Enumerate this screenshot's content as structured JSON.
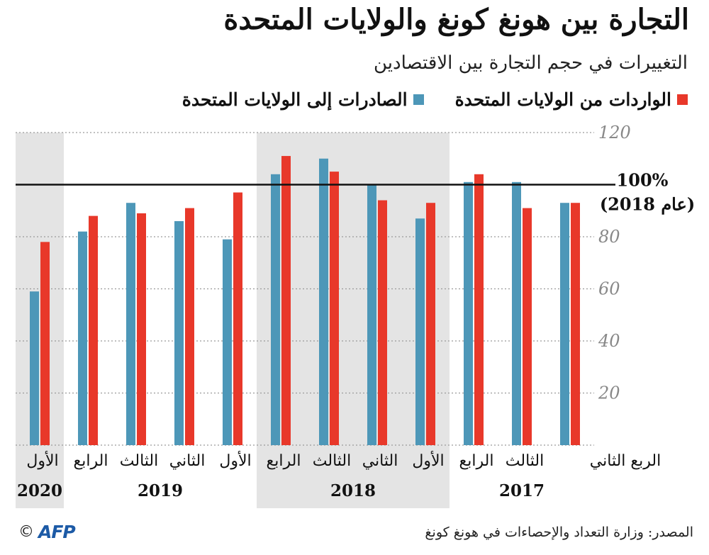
{
  "colors": {
    "exports": "#4d97b8",
    "imports": "#e8382a",
    "shade": "#e4e4e4",
    "grid": "#9a9a9a",
    "axis_text": "#888888"
  },
  "title": "التجارة بين هونغ كونغ والولايات المتحدة",
  "subtitle": "التغييرات في حجم التجارة بين الاقتصادين",
  "legend": {
    "imports": "الواردات من الولايات المتحدة",
    "exports": "الصادرات إلى الولايات المتحدة"
  },
  "reference_label": {
    "line1": "100%",
    "line2": "(عام 2018)"
  },
  "footer": {
    "source": "المصدر: وزارة التعداد والإحصاءات في هونغ كونغ",
    "logo_symbol": "©",
    "logo_text": "AFP"
  },
  "chart_data": {
    "type": "bar",
    "ylim": [
      0,
      120
    ],
    "yticks": [
      20,
      40,
      60,
      80,
      120
    ],
    "reference_value": 100,
    "grid": true,
    "categories": [
      {
        "quarter": "الثاني",
        "year": "2017"
      },
      {
        "quarter": "الثالث",
        "year": "2017"
      },
      {
        "quarter": "الرابع",
        "year": "2017"
      },
      {
        "quarter": "الأول",
        "year": "2018"
      },
      {
        "quarter": "الثاني",
        "year": "2018"
      },
      {
        "quarter": "الثالث",
        "year": "2018"
      },
      {
        "quarter": "الرابع",
        "year": "2018"
      },
      {
        "quarter": "الأول",
        "year": "2019"
      },
      {
        "quarter": "الثاني",
        "year": "2019"
      },
      {
        "quarter": "الثالث",
        "year": "2019"
      },
      {
        "quarter": "الرابع",
        "year": "2019"
      },
      {
        "quarter": "الأول",
        "year": "2020"
      }
    ],
    "axis_prefix": "الربع",
    "years": [
      "2017",
      "2018",
      "2019",
      "2020"
    ],
    "series": [
      {
        "name": "الصادرات إلى الولايات المتحدة",
        "key": "exports",
        "values": [
          93,
          101,
          101,
          87,
          100,
          110,
          104,
          79,
          86,
          93,
          82,
          59
        ]
      },
      {
        "name": "الواردات من الولايات المتحدة",
        "key": "imports",
        "values": [
          93,
          91,
          104,
          93,
          94,
          105,
          111,
          97,
          91,
          89,
          88,
          78
        ]
      }
    ]
  }
}
